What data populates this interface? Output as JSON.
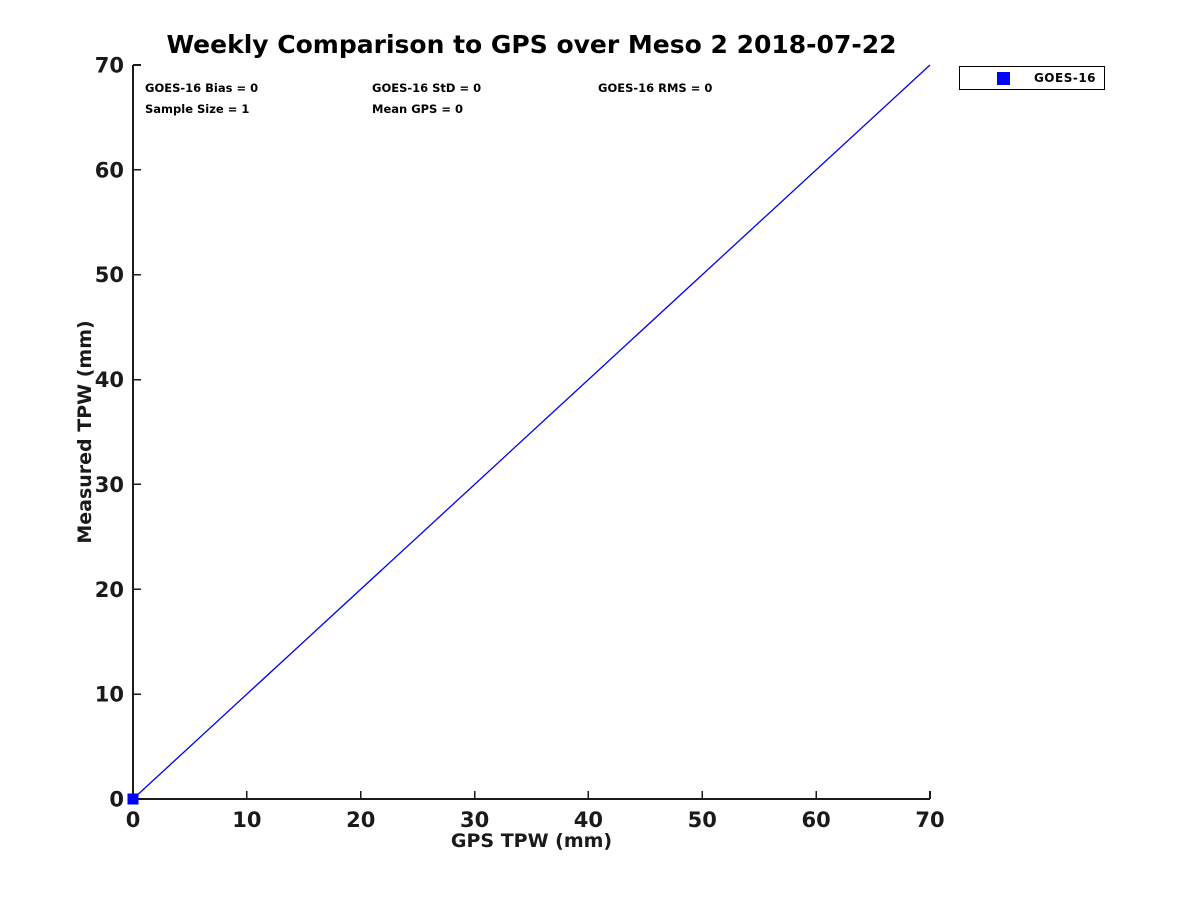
{
  "chart_data": {
    "type": "line",
    "title": "Weekly Comparison to GPS over Meso 2 2018-07-22",
    "xlabel": "GPS TPW (mm)",
    "ylabel": "Measured TPW (mm)",
    "xlim": [
      0,
      70
    ],
    "ylim": [
      0,
      70
    ],
    "xticks": [
      0,
      10,
      20,
      30,
      40,
      50,
      60,
      70
    ],
    "yticks": [
      0,
      10,
      20,
      30,
      40,
      50,
      60,
      70
    ],
    "grid": false,
    "series": [
      {
        "name": "GOES-16",
        "display": "line",
        "color": "#0000f5",
        "line_width": 1.3,
        "x": [
          0,
          70
        ],
        "y": [
          0,
          70
        ]
      }
    ],
    "markers": [
      {
        "series": "GOES-16",
        "x": 0,
        "y": 0,
        "shape": "filled-square",
        "size": 11,
        "color": "#0000ff"
      }
    ],
    "annotations": {
      "row1": [
        "GOES-16 Bias = 0",
        "GOES-16 StD = 0",
        "GOES-16 RMS = 0"
      ],
      "row2": [
        "Sample Size = 1",
        "Mean GPS = 0"
      ]
    },
    "legend": {
      "position": "outside-top-right",
      "entries": [
        {
          "label": "GOES-16",
          "marker": "filled-square",
          "color": "#0000ff"
        }
      ]
    }
  },
  "colors": {
    "background": "#ffffff",
    "axis": "#1a1a1a",
    "text": "#000000",
    "line": "#0000f5",
    "marker": "#0000ff"
  }
}
